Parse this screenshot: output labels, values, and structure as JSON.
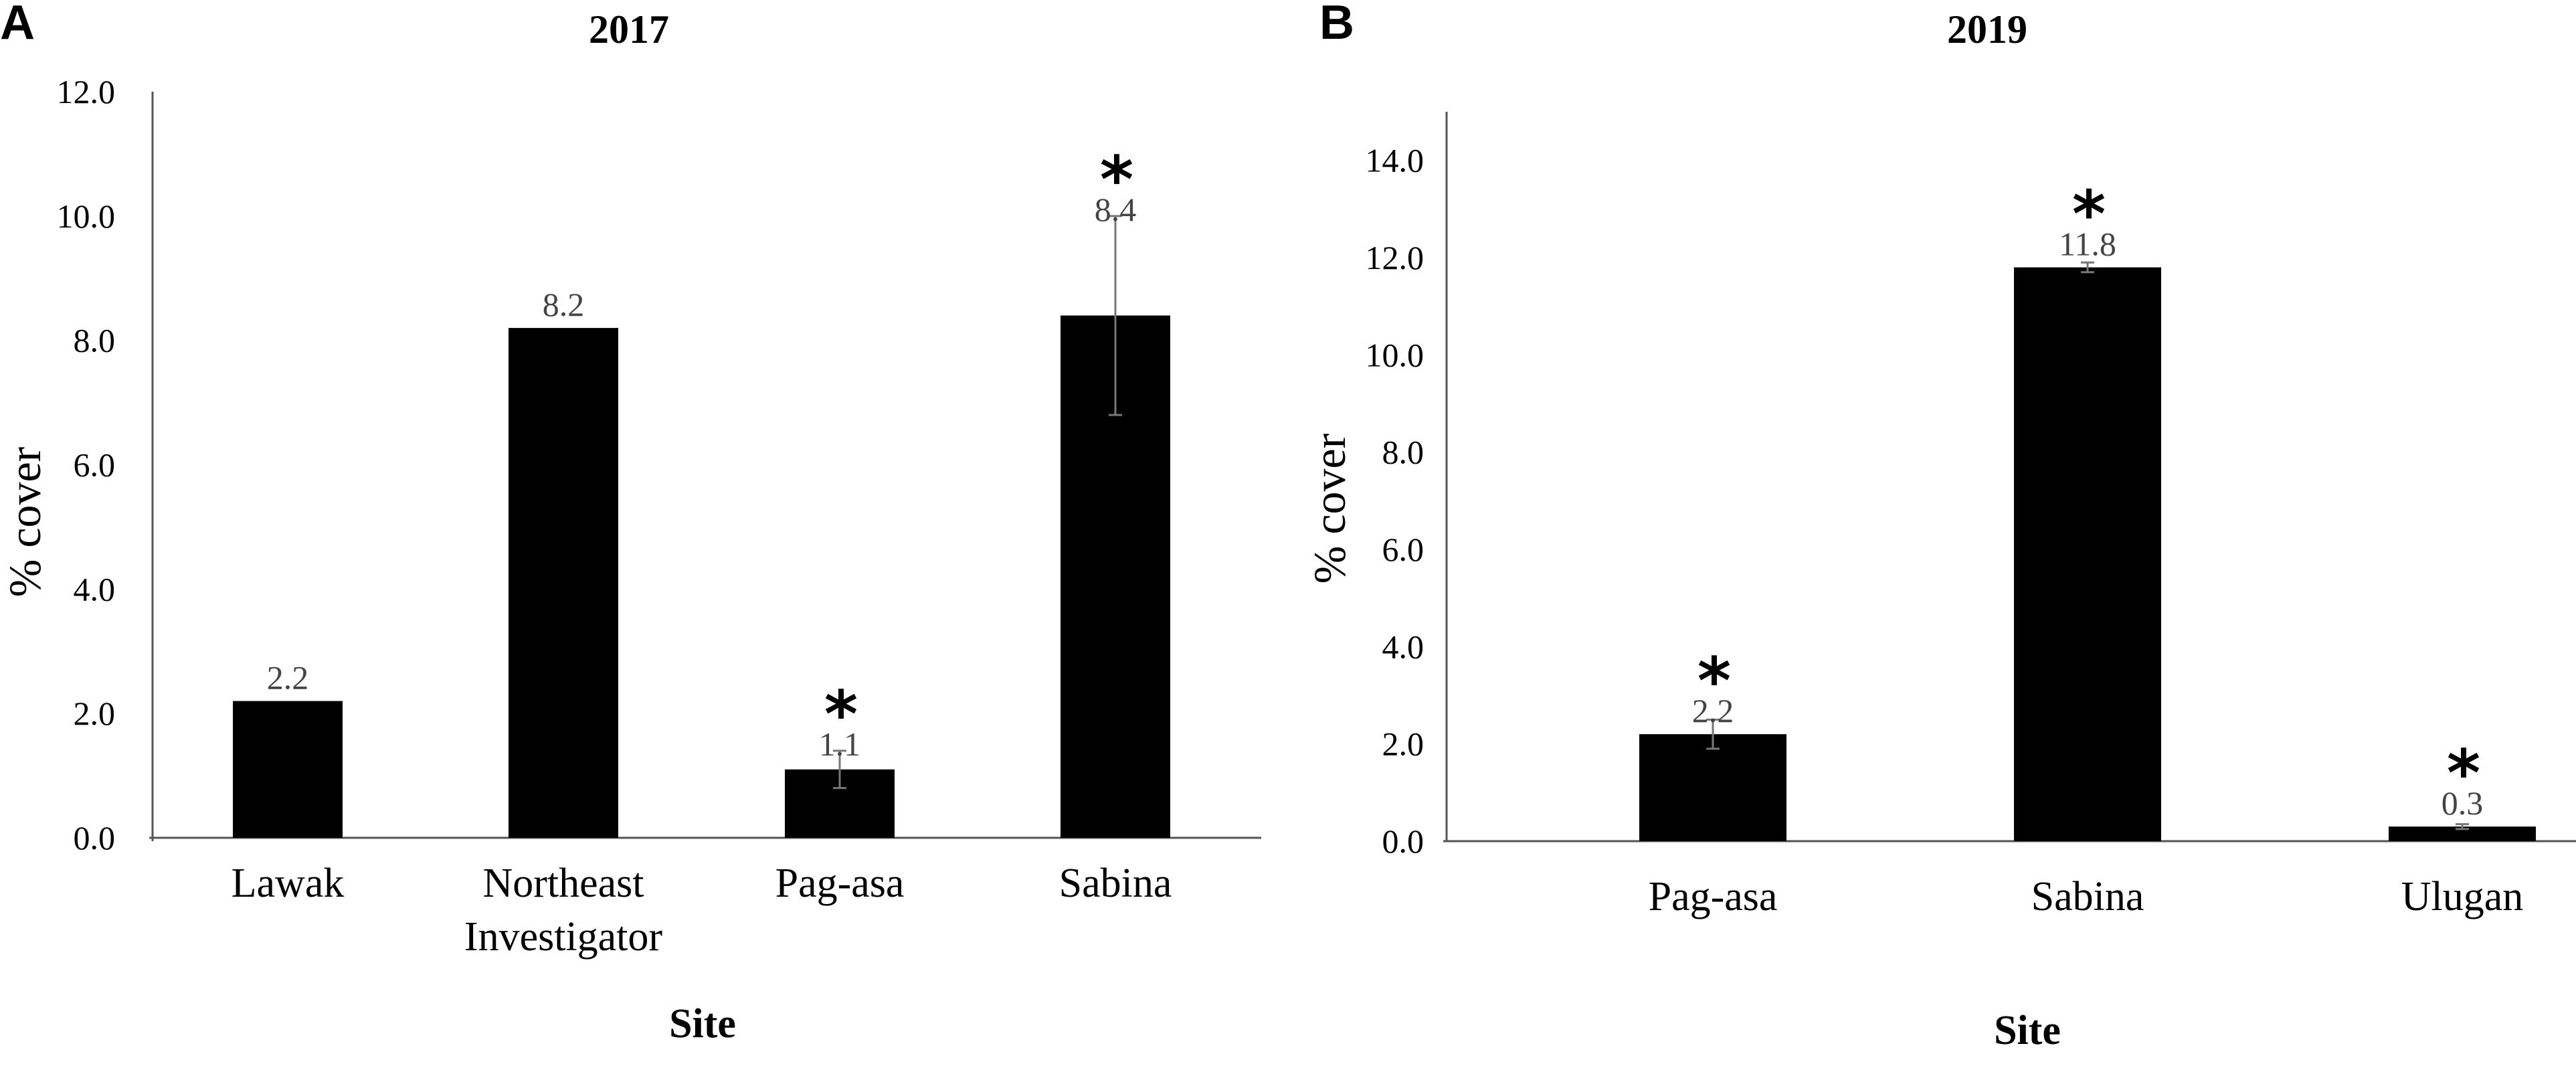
{
  "panels": [
    {
      "letter": "A",
      "title": "2017",
      "ylabel": "% cover",
      "xlabel": "Site"
    },
    {
      "letter": "B",
      "title": "2019",
      "ylabel": "%  cover",
      "xlabel": "Site"
    }
  ],
  "chart_data": [
    {
      "type": "bar",
      "title": "2017",
      "xlabel": "Site",
      "ylabel": "% cover",
      "categories": [
        [
          "Lawak"
        ],
        [
          "Northeast",
          "Investigator"
        ],
        [
          "Pag-asa"
        ],
        [
          "Sabina"
        ]
      ],
      "values": [
        2.2,
        8.2,
        1.1,
        8.4
      ],
      "data_labels": [
        "2.2",
        "8.2",
        "1.1",
        "8.4"
      ],
      "errors": [
        null,
        null,
        0.3,
        1.6
      ],
      "significant": [
        false,
        false,
        true,
        true
      ],
      "ylim": [
        0,
        12
      ],
      "yticks": [
        "0.0",
        "2.0",
        "4.0",
        "6.0",
        "8.0",
        "10.0",
        "12.0"
      ],
      "bar_color": "#000000",
      "grid": false
    },
    {
      "type": "bar",
      "title": "2019",
      "xlabel": "Site",
      "ylabel": "%  cover",
      "categories": [
        [
          "Pag-asa"
        ],
        [
          "Sabina"
        ],
        [
          "Ulugan"
        ]
      ],
      "values": [
        2.2,
        11.8,
        0.3
      ],
      "data_labels": [
        "2.2",
        "11.8",
        "0.3"
      ],
      "errors": [
        0.3,
        0.1,
        0.05
      ],
      "significant": [
        true,
        true,
        true
      ],
      "ylim": [
        0,
        15
      ],
      "yticks": [
        "0.0",
        "2.0",
        "4.0",
        "6.0",
        "8.0",
        "10.0",
        "12.0",
        "14.0"
      ],
      "bar_color": "#000000",
      "grid": false
    }
  ],
  "significance_marker": "*"
}
